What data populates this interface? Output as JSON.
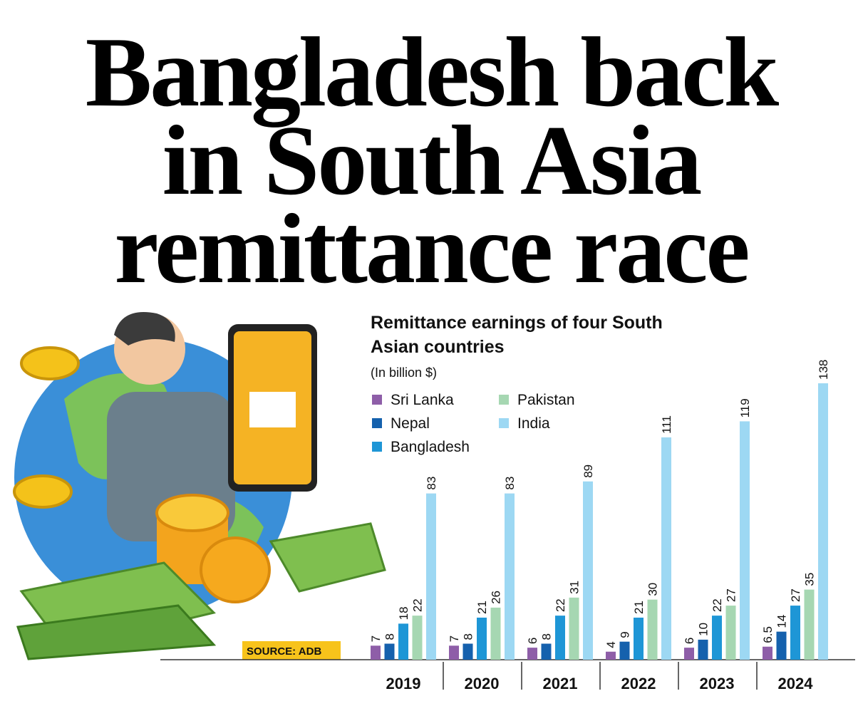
{
  "chart_data": {
    "type": "bar",
    "headline": "Bangladesh back in South Asia remittance race",
    "title": "Remittance earnings of four South Asian countries",
    "subtitle": "(In billion $)",
    "source": "SOURCE: ADB",
    "categories": [
      "2019",
      "2020",
      "2021",
      "2022",
      "2023",
      "2024"
    ],
    "series": [
      {
        "name": "Sri Lanka",
        "color": "#8e5ea8",
        "values": [
          7,
          7,
          6,
          4,
          6,
          6.5
        ]
      },
      {
        "name": "Nepal",
        "color": "#1561ad",
        "values": [
          8,
          8,
          8,
          9,
          10,
          14
        ]
      },
      {
        "name": "Bangladesh",
        "color": "#1e96d6",
        "values": [
          18,
          21,
          22,
          21,
          22,
          27
        ]
      },
      {
        "name": "Pakistan",
        "color": "#a6d7b2",
        "values": [
          22,
          26,
          31,
          30,
          27,
          35
        ]
      },
      {
        "name": "India",
        "color": "#9dd8f3",
        "values": [
          83,
          83,
          89,
          111,
          119,
          138
        ]
      }
    ],
    "ylim": [
      0,
      138
    ]
  }
}
